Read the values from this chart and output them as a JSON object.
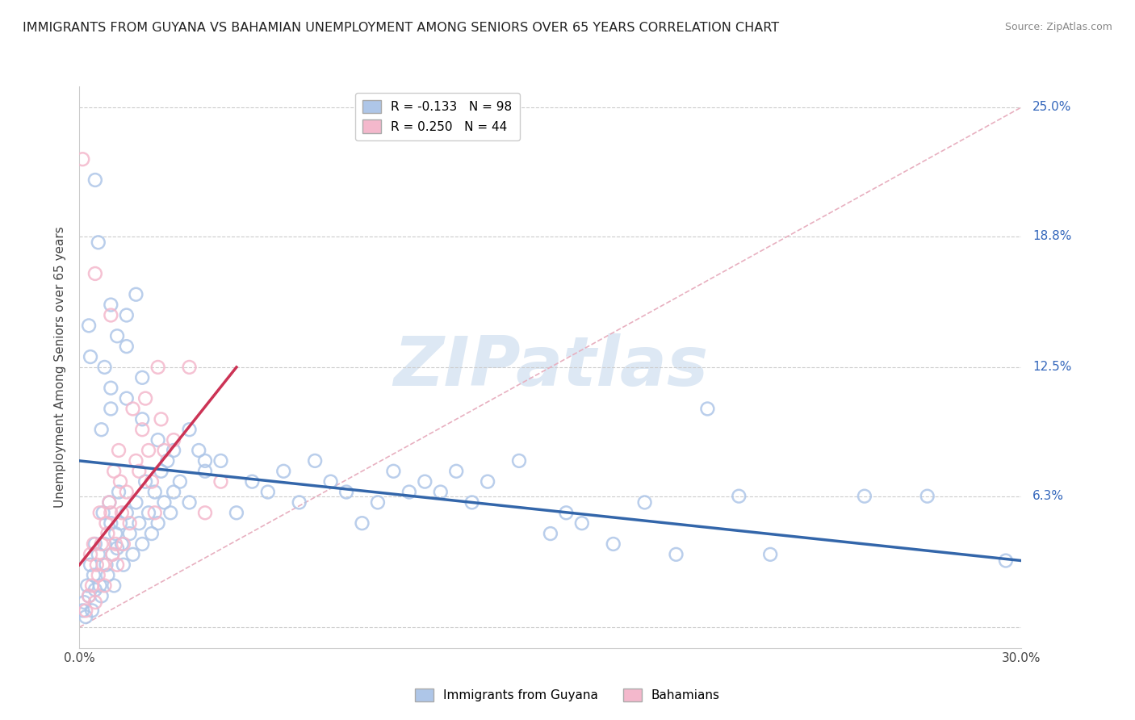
{
  "title": "IMMIGRANTS FROM GUYANA VS BAHAMIAN UNEMPLOYMENT AMONG SENIORS OVER 65 YEARS CORRELATION CHART",
  "source": "Source: ZipAtlas.com",
  "ylabel": "Unemployment Among Seniors over 65 years",
  "xlim": [
    0.0,
    30.0
  ],
  "ylim": [
    -1.0,
    26.0
  ],
  "ytick_values": [
    0.0,
    6.3,
    12.5,
    18.8,
    25.0
  ],
  "ytick_labels": [
    "",
    "6.3%",
    "12.5%",
    "18.8%",
    "25.0%"
  ],
  "xtick_values": [
    0.0,
    7.5,
    15.0,
    22.5,
    30.0
  ],
  "xtick_labels": [
    "0.0%",
    "",
    "",
    "",
    "30.0%"
  ],
  "legend_blue_label": "R = -0.133   N = 98",
  "legend_pink_label": "R = 0.250   N = 44",
  "legend_blue_color": "#aec6e8",
  "legend_pink_color": "#f4b8cc",
  "blue_scatter_color": "#aec6e8",
  "pink_scatter_color": "#f4b8cc",
  "blue_line_color": "#3366aa",
  "pink_line_color": "#cc3355",
  "diag_line_color": "#e8b0c0",
  "watermark_color": "#dde8f4",
  "watermark_text": "ZIPatlas",
  "blue_line_x": [
    0.0,
    30.0
  ],
  "blue_line_y": [
    8.0,
    3.2
  ],
  "pink_line_x": [
    0.0,
    5.0
  ],
  "pink_line_y": [
    3.0,
    12.5
  ],
  "blue_points": [
    [
      0.1,
      0.8
    ],
    [
      0.15,
      1.2
    ],
    [
      0.2,
      0.5
    ],
    [
      0.25,
      2.0
    ],
    [
      0.3,
      1.5
    ],
    [
      0.35,
      3.0
    ],
    [
      0.4,
      0.8
    ],
    [
      0.45,
      2.5
    ],
    [
      0.5,
      1.8
    ],
    [
      0.5,
      4.0
    ],
    [
      0.6,
      3.5
    ],
    [
      0.65,
      2.0
    ],
    [
      0.7,
      1.5
    ],
    [
      0.75,
      5.5
    ],
    [
      0.8,
      4.0
    ],
    [
      0.85,
      3.0
    ],
    [
      0.9,
      2.5
    ],
    [
      0.95,
      6.0
    ],
    [
      1.0,
      5.0
    ],
    [
      1.05,
      3.5
    ],
    [
      1.1,
      2.0
    ],
    [
      1.15,
      4.5
    ],
    [
      1.2,
      3.8
    ],
    [
      1.25,
      6.5
    ],
    [
      1.3,
      5.0
    ],
    [
      1.35,
      4.0
    ],
    [
      1.4,
      3.0
    ],
    [
      1.5,
      5.5
    ],
    [
      1.6,
      4.5
    ],
    [
      1.7,
      3.5
    ],
    [
      1.8,
      6.0
    ],
    [
      1.9,
      5.0
    ],
    [
      2.0,
      4.0
    ],
    [
      2.1,
      7.0
    ],
    [
      2.2,
      5.5
    ],
    [
      2.3,
      4.5
    ],
    [
      2.4,
      6.5
    ],
    [
      2.5,
      5.0
    ],
    [
      2.6,
      7.5
    ],
    [
      2.7,
      6.0
    ],
    [
      2.8,
      8.0
    ],
    [
      2.9,
      5.5
    ],
    [
      3.0,
      6.5
    ],
    [
      3.2,
      7.0
    ],
    [
      3.5,
      6.0
    ],
    [
      3.8,
      8.5
    ],
    [
      4.0,
      7.5
    ],
    [
      4.5,
      8.0
    ],
    [
      5.0,
      5.5
    ],
    [
      5.5,
      7.0
    ],
    [
      6.0,
      6.5
    ],
    [
      6.5,
      7.5
    ],
    [
      7.0,
      6.0
    ],
    [
      7.5,
      8.0
    ],
    [
      8.0,
      7.0
    ],
    [
      8.5,
      6.5
    ],
    [
      9.0,
      5.0
    ],
    [
      9.5,
      6.0
    ],
    [
      10.0,
      7.5
    ],
    [
      10.5,
      6.5
    ],
    [
      11.0,
      7.0
    ],
    [
      11.5,
      6.5
    ],
    [
      12.0,
      7.5
    ],
    [
      12.5,
      6.0
    ],
    [
      13.0,
      7.0
    ],
    [
      14.0,
      8.0
    ],
    [
      15.0,
      4.5
    ],
    [
      15.5,
      5.5
    ],
    [
      16.0,
      5.0
    ],
    [
      17.0,
      4.0
    ],
    [
      18.0,
      6.0
    ],
    [
      19.0,
      3.5
    ],
    [
      20.0,
      10.5
    ],
    [
      21.0,
      6.3
    ],
    [
      22.0,
      3.5
    ],
    [
      25.0,
      6.3
    ],
    [
      27.0,
      6.3
    ],
    [
      29.5,
      3.2
    ],
    [
      0.3,
      14.5
    ],
    [
      0.35,
      13.0
    ],
    [
      0.5,
      21.5
    ],
    [
      0.6,
      18.5
    ],
    [
      1.0,
      15.5
    ],
    [
      1.2,
      14.0
    ],
    [
      1.5,
      15.0
    ],
    [
      1.8,
      16.0
    ],
    [
      0.8,
      12.5
    ],
    [
      1.0,
      11.5
    ],
    [
      1.5,
      13.5
    ],
    [
      2.0,
      12.0
    ],
    [
      0.7,
      9.5
    ],
    [
      1.0,
      10.5
    ],
    [
      1.5,
      11.0
    ],
    [
      2.0,
      10.0
    ],
    [
      2.5,
      9.0
    ],
    [
      3.0,
      8.5
    ],
    [
      3.5,
      9.5
    ],
    [
      4.0,
      8.0
    ]
  ],
  "pink_points": [
    [
      0.1,
      22.5
    ],
    [
      0.2,
      0.8
    ],
    [
      0.3,
      1.5
    ],
    [
      0.35,
      3.5
    ],
    [
      0.4,
      2.0
    ],
    [
      0.45,
      4.0
    ],
    [
      0.5,
      1.2
    ],
    [
      0.55,
      3.0
    ],
    [
      0.6,
      2.5
    ],
    [
      0.65,
      5.5
    ],
    [
      0.7,
      4.0
    ],
    [
      0.75,
      3.0
    ],
    [
      0.8,
      2.0
    ],
    [
      0.85,
      5.0
    ],
    [
      0.9,
      4.5
    ],
    [
      0.95,
      6.0
    ],
    [
      1.0,
      5.5
    ],
    [
      1.05,
      3.5
    ],
    [
      1.1,
      7.5
    ],
    [
      1.15,
      4.0
    ],
    [
      1.2,
      3.0
    ],
    [
      1.25,
      8.5
    ],
    [
      1.3,
      7.0
    ],
    [
      1.35,
      5.5
    ],
    [
      1.4,
      4.0
    ],
    [
      1.5,
      6.5
    ],
    [
      1.6,
      5.0
    ],
    [
      1.7,
      10.5
    ],
    [
      1.8,
      8.0
    ],
    [
      1.9,
      7.5
    ],
    [
      2.0,
      9.5
    ],
    [
      2.1,
      11.0
    ],
    [
      2.2,
      8.5
    ],
    [
      2.3,
      7.0
    ],
    [
      2.4,
      5.5
    ],
    [
      2.5,
      12.5
    ],
    [
      2.6,
      10.0
    ],
    [
      2.7,
      8.5
    ],
    [
      3.0,
      9.0
    ],
    [
      3.5,
      12.5
    ],
    [
      4.0,
      5.5
    ],
    [
      4.5,
      7.0
    ],
    [
      0.5,
      17.0
    ],
    [
      1.0,
      15.0
    ]
  ]
}
